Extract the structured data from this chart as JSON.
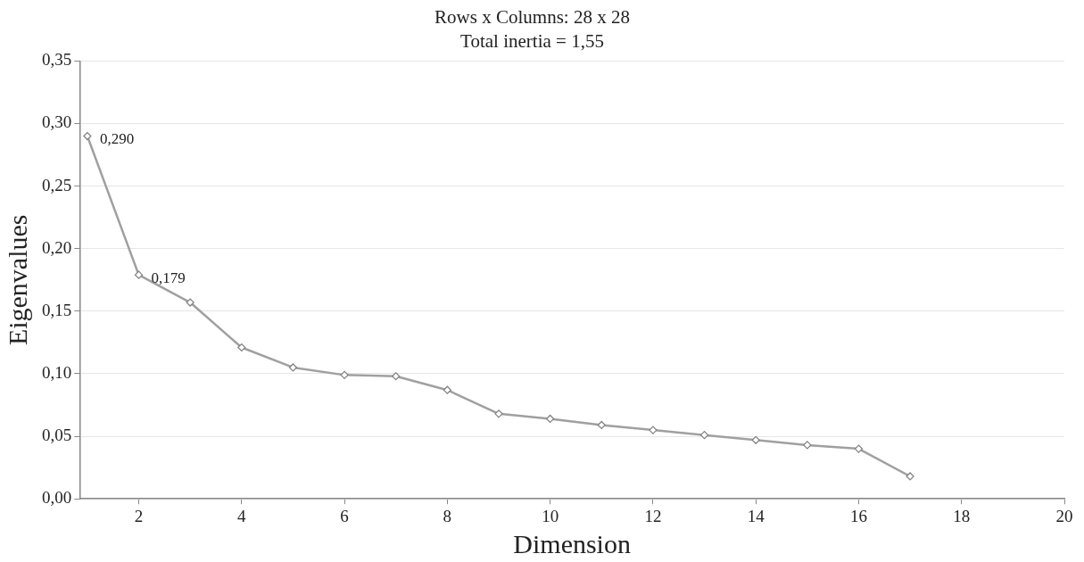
{
  "chart_data": {
    "type": "line",
    "title": "Rows x Columns: 28 x 28",
    "subtitle": "Total inertia = 1,55",
    "xlabel": "Dimension",
    "ylabel": "Eigenvalues",
    "x": [
      1,
      2,
      3,
      4,
      5,
      6,
      7,
      8,
      9,
      10,
      11,
      12,
      13,
      14,
      15,
      16,
      17
    ],
    "series": [
      {
        "color": "#a0a0a0",
        "values": [
          0.29,
          0.179,
          0.157,
          0.121,
          0.105,
          0.099,
          0.098,
          0.087,
          0.068,
          0.064,
          0.059,
          0.055,
          0.051,
          0.047,
          0.043,
          0.04,
          0.018
        ]
      }
    ],
    "xlim": [
      0.85,
      20
    ],
    "xticks": [
      2,
      4,
      6,
      8,
      10,
      12,
      14,
      16,
      18,
      20
    ],
    "ylim": [
      0,
      0.35
    ],
    "yticks": [
      {
        "value": 0,
        "label": "0,00"
      },
      {
        "value": 0.05,
        "label": "0,05"
      },
      {
        "value": 0.1,
        "label": "0,10"
      },
      {
        "value": 0.15,
        "label": "0,15"
      },
      {
        "value": 0.2,
        "label": "0,20"
      },
      {
        "value": 0.25,
        "label": "0,25"
      },
      {
        "value": 0.3,
        "label": "0,30"
      },
      {
        "value": 0.35,
        "label": "0,35"
      }
    ],
    "annotations": [
      {
        "text": "0,290",
        "x": 1,
        "y": 0.29
      },
      {
        "text": "0,179",
        "x": 2,
        "y": 0.179
      }
    ],
    "grid": "y",
    "legend": false,
    "marker": "diamond",
    "line_style": "solid"
  }
}
